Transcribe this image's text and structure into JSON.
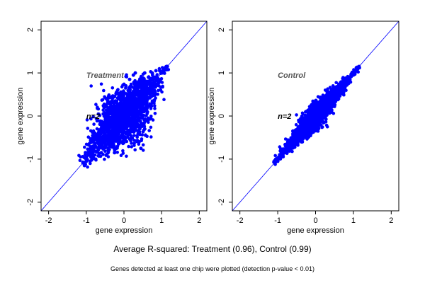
{
  "chart_data": [
    {
      "type": "scatter",
      "panel": "left",
      "annotation_label": "Treatment",
      "n_label": "n=2",
      "xlabel": "gene expression",
      "ylabel": "gene expression",
      "xlim": [
        -2.2,
        2.2
      ],
      "ylim": [
        -2.2,
        2.2
      ],
      "xticks": [
        -2,
        -1,
        0,
        1,
        2
      ],
      "yticks": [
        -2,
        -1,
        0,
        1,
        2
      ],
      "reference_line": "y = x",
      "point_color": "#0000ff",
      "line_color": "#0000ff",
      "grid": false,
      "series": [
        {
          "points": [
            [
              -1.05,
              -1.15
            ],
            [
              -1.0,
              -1.05
            ],
            [
              -0.95,
              -0.9
            ],
            [
              -0.9,
              -1.05
            ],
            [
              -0.85,
              -0.8
            ],
            [
              -0.82,
              -0.95
            ],
            [
              -0.8,
              -0.75
            ],
            [
              -0.78,
              -0.55
            ],
            [
              -0.75,
              -1.0
            ],
            [
              -0.7,
              -0.6
            ],
            [
              -0.65,
              -0.45
            ],
            [
              -0.6,
              -0.85
            ],
            [
              -0.55,
              -0.3
            ],
            [
              -0.5,
              -0.7
            ],
            [
              -0.45,
              -0.2
            ],
            [
              -0.4,
              -0.55
            ],
            [
              -0.35,
              0.1
            ],
            [
              -0.3,
              -0.6
            ],
            [
              -0.25,
              0.2
            ],
            [
              -0.2,
              -0.45
            ],
            [
              -0.15,
              0.4
            ],
            [
              -0.1,
              -0.3
            ],
            [
              -0.05,
              0.55
            ],
            [
              0.0,
              -0.35
            ],
            [
              0.05,
              0.7
            ],
            [
              0.1,
              -0.2
            ],
            [
              0.15,
              0.85
            ],
            [
              0.2,
              -0.5
            ],
            [
              0.25,
              0.95
            ],
            [
              0.3,
              -0.1
            ],
            [
              0.35,
              0.6
            ],
            [
              0.4,
              -0.6
            ],
            [
              0.45,
              0.8
            ],
            [
              0.5,
              0.1
            ],
            [
              0.55,
              1.0
            ],
            [
              0.6,
              0.3
            ],
            [
              0.65,
              0.9
            ],
            [
              0.7,
              0.5
            ],
            [
              0.75,
              1.0
            ],
            [
              0.8,
              0.6
            ],
            [
              0.85,
              1.05
            ],
            [
              0.9,
              0.8
            ],
            [
              0.95,
              1.05
            ],
            [
              1.0,
              1.0
            ],
            [
              1.05,
              1.1
            ],
            [
              1.1,
              1.1
            ],
            [
              1.15,
              1.15
            ],
            [
              -0.55,
              0.05
            ],
            [
              0.45,
              -0.75
            ],
            [
              0.3,
              1.0
            ],
            [
              -0.25,
              -0.85
            ],
            [
              0.55,
              -0.3
            ]
          ]
        }
      ]
    },
    {
      "type": "scatter",
      "panel": "right",
      "annotation_label": "Control",
      "n_label": "n=2",
      "xlabel": "gene expression",
      "ylabel": "gene expression",
      "xlim": [
        -2.2,
        2.2
      ],
      "ylim": [
        -2.2,
        2.2
      ],
      "xticks": [
        -2,
        -1,
        0,
        1,
        2
      ],
      "yticks": [
        -2,
        -1,
        0,
        1,
        2
      ],
      "reference_line": "y = x",
      "point_color": "#0000ff",
      "line_color": "#0000ff",
      "grid": false,
      "series": [
        {
          "points": [
            [
              -1.05,
              -1.0
            ],
            [
              -1.0,
              -1.05
            ],
            [
              -0.95,
              -0.9
            ],
            [
              -0.9,
              -0.95
            ],
            [
              -0.85,
              -0.8
            ],
            [
              -0.8,
              -0.85
            ],
            [
              -0.75,
              -0.7
            ],
            [
              -0.7,
              -0.78
            ],
            [
              -0.65,
              -0.6
            ],
            [
              -0.6,
              -0.68
            ],
            [
              -0.55,
              -0.5
            ],
            [
              -0.5,
              -0.58
            ],
            [
              -0.45,
              -0.4
            ],
            [
              -0.4,
              -0.5
            ],
            [
              -0.35,
              -0.3
            ],
            [
              -0.3,
              -0.4
            ],
            [
              -0.25,
              -0.2
            ],
            [
              -0.2,
              -0.3
            ],
            [
              -0.15,
              -0.1
            ],
            [
              -0.1,
              -0.2
            ],
            [
              -0.05,
              0.0
            ],
            [
              0.0,
              -0.1
            ],
            [
              0.05,
              0.1
            ],
            [
              0.1,
              0.0
            ],
            [
              0.15,
              0.2
            ],
            [
              0.2,
              0.1
            ],
            [
              0.25,
              0.3
            ],
            [
              0.3,
              0.2
            ],
            [
              0.35,
              0.4
            ],
            [
              0.4,
              0.3
            ],
            [
              0.45,
              0.5
            ],
            [
              0.5,
              0.42
            ],
            [
              0.55,
              0.6
            ],
            [
              0.6,
              0.52
            ],
            [
              0.65,
              0.7
            ],
            [
              0.7,
              0.62
            ],
            [
              0.75,
              0.8
            ],
            [
              0.8,
              0.72
            ],
            [
              0.85,
              0.88
            ],
            [
              0.9,
              0.84
            ],
            [
              0.95,
              0.98
            ],
            [
              1.0,
              0.95
            ],
            [
              1.05,
              1.05
            ],
            [
              1.1,
              1.08
            ],
            [
              1.15,
              1.15
            ],
            [
              -0.6,
              -0.35
            ],
            [
              -0.35,
              -0.6
            ],
            [
              0.1,
              -0.2
            ],
            [
              0.2,
              0.4
            ]
          ]
        }
      ]
    }
  ],
  "caption": "Average R-squared: Treatment (0.96), Control (0.99)",
  "footnote": "Genes detected at least one chip were plotted (detection p-value < 0.01)"
}
